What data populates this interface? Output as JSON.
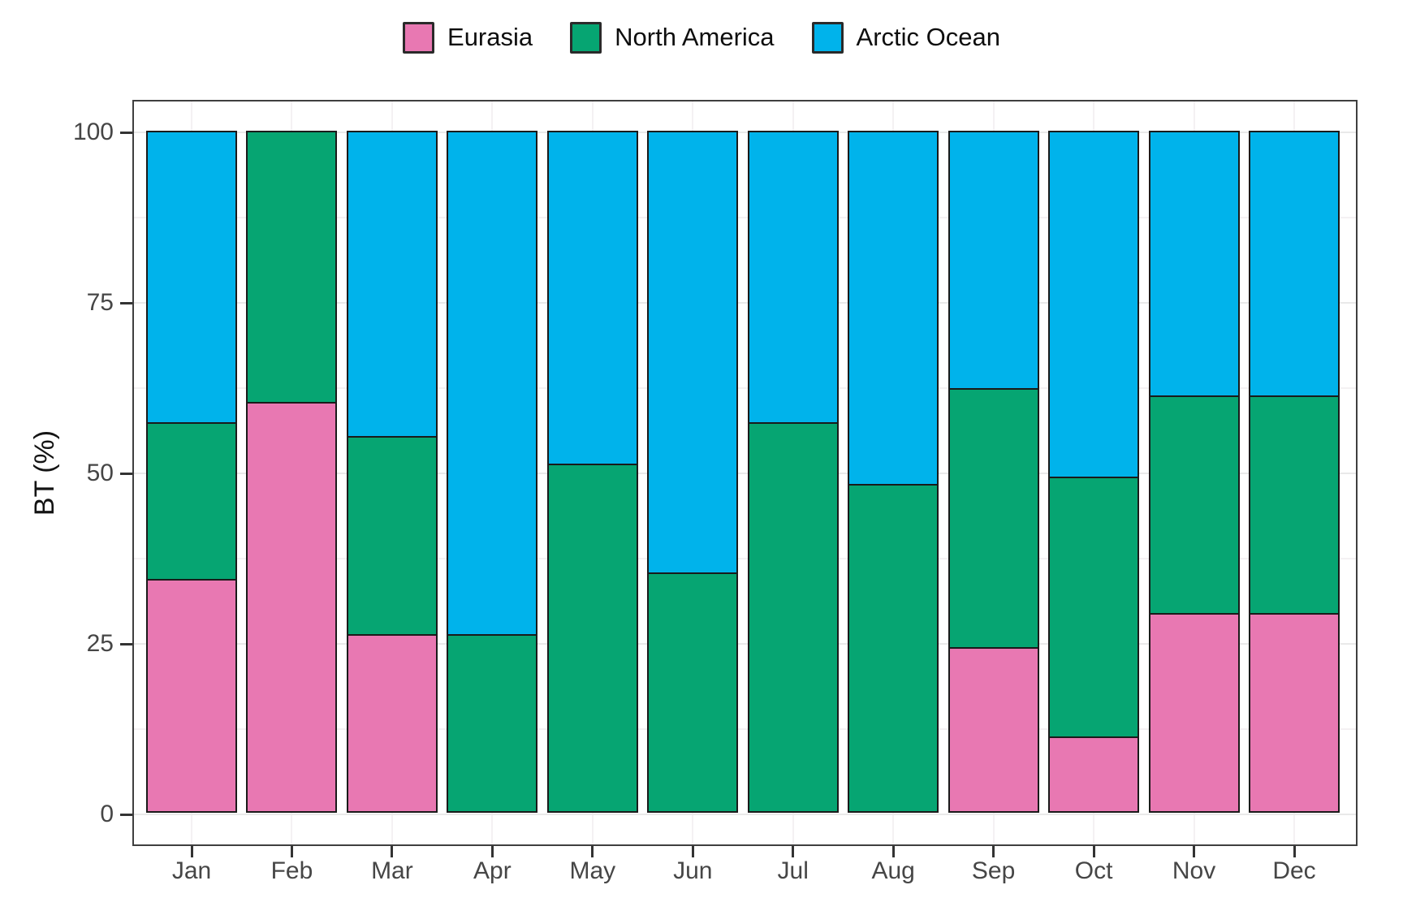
{
  "chart_data": {
    "type": "bar",
    "stacked": true,
    "orientation": "vertical",
    "title": "",
    "xlabel": "",
    "ylabel": "BT (%)",
    "ylim": [
      0,
      100
    ],
    "yticks": [
      0,
      25,
      50,
      75,
      100
    ],
    "yticks_minor": [
      12.5,
      37.5,
      62.5,
      87.5
    ],
    "grid": true,
    "legend_position": "top",
    "categories": [
      "Jan",
      "Feb",
      "Mar",
      "Apr",
      "May",
      "Jun",
      "Jul",
      "Aug",
      "Sep",
      "Oct",
      "Nov",
      "Dec"
    ],
    "series": [
      {
        "name": "Eurasia",
        "color": "#e878b2",
        "values": [
          34,
          60,
          26,
          0,
          0,
          0,
          0,
          0,
          24,
          11,
          29,
          29
        ]
      },
      {
        "name": "North America",
        "color": "#06a572",
        "values": [
          23,
          40,
          29,
          26,
          51,
          35,
          57,
          48,
          38,
          38,
          32,
          32
        ]
      },
      {
        "name": "Arctic Ocean",
        "color": "#00b3eb",
        "values": [
          43,
          0,
          45,
          74,
          49,
          65,
          43,
          52,
          38,
          51,
          39,
          39
        ]
      }
    ],
    "colors": {
      "bar_outline": "#1a1a1a",
      "panel_border": "#3f3f3f",
      "gridline_major": "#e9e9e9",
      "gridline_minor": "#f4f1f3",
      "axis_text": "#464646",
      "axis_title": "#141414"
    }
  }
}
